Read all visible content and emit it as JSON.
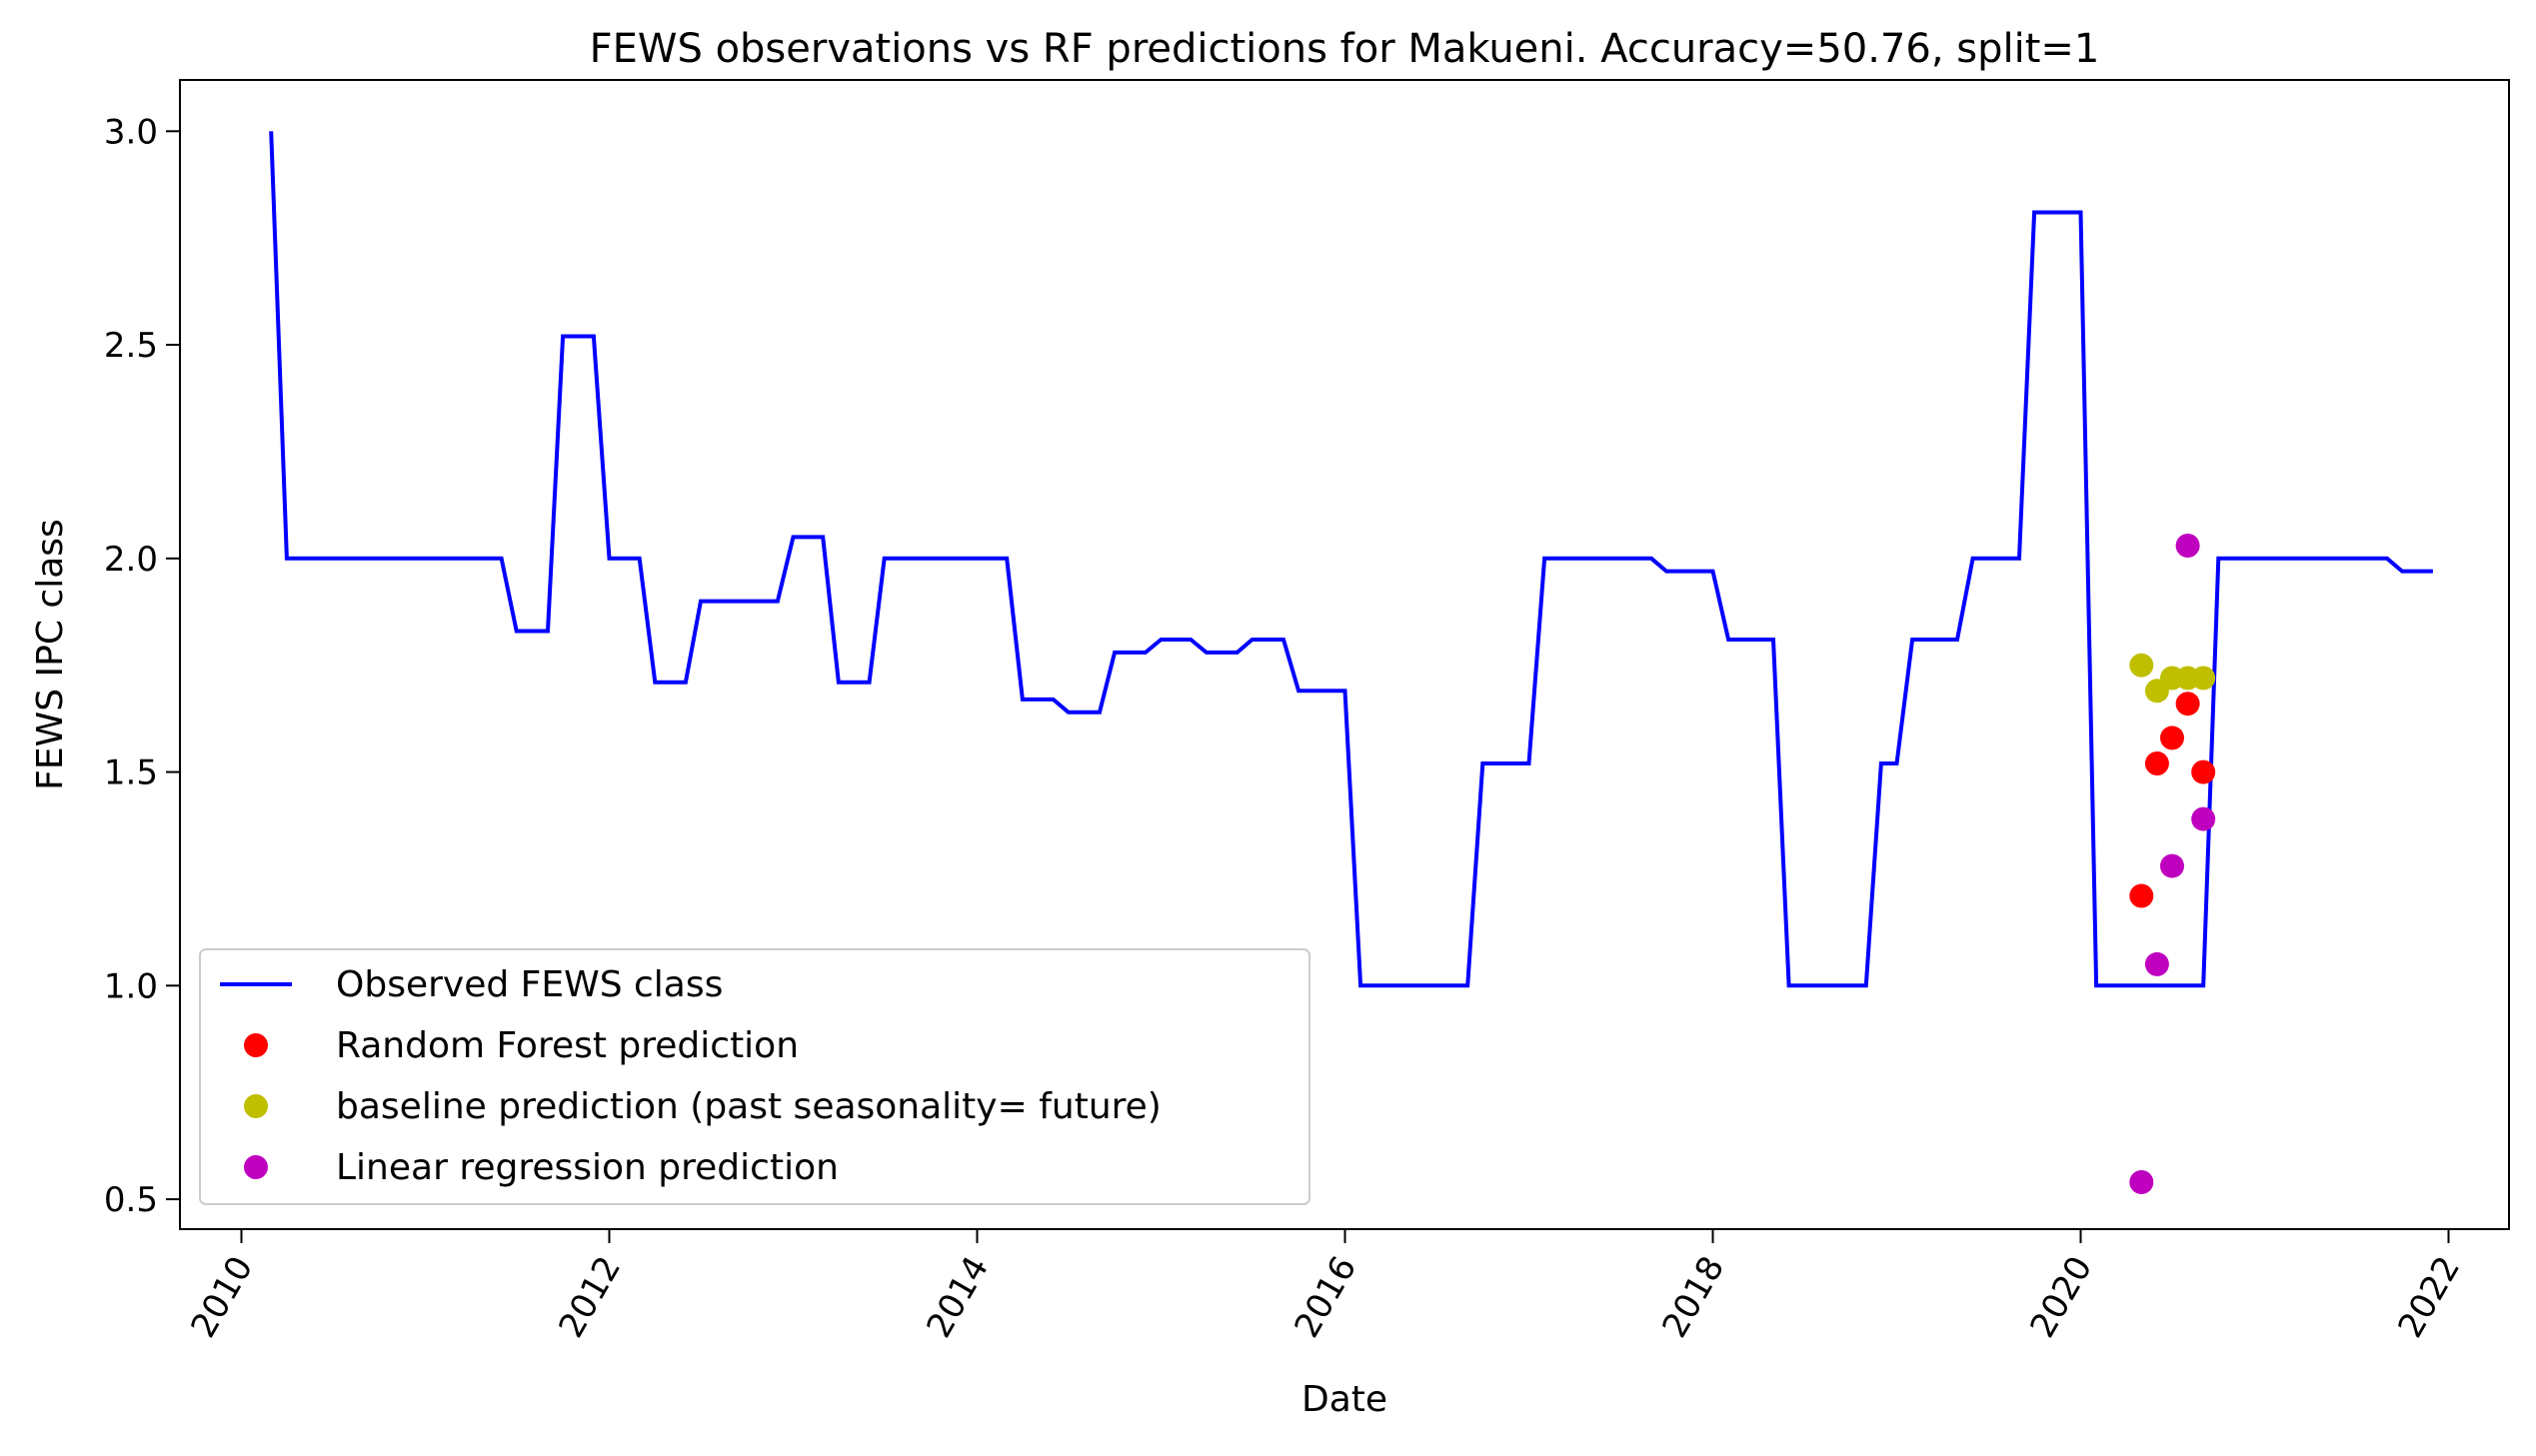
{
  "chart_data": {
    "type": "line",
    "title": "FEWS observations vs RF predictions for Makueni. Accuracy=50.76, split=1",
    "xlabel": "Date",
    "ylabel": "FEWS IPC class",
    "x_axis_type": "date",
    "xlim": [
      "2009-09-01",
      "2022-05-01"
    ],
    "ylim": [
      0.43,
      3.12
    ],
    "x_ticks": [
      {
        "date": "2010-01-01",
        "label": "2010"
      },
      {
        "date": "2012-01-01",
        "label": "2012"
      },
      {
        "date": "2014-01-01",
        "label": "2014"
      },
      {
        "date": "2016-01-01",
        "label": "2016"
      },
      {
        "date": "2018-01-01",
        "label": "2018"
      },
      {
        "date": "2020-01-01",
        "label": "2020"
      },
      {
        "date": "2022-01-01",
        "label": "2022"
      }
    ],
    "y_ticks": [
      {
        "value": 0.5,
        "label": "0.5"
      },
      {
        "value": 1.0,
        "label": "1.0"
      },
      {
        "value": 1.5,
        "label": "1.5"
      },
      {
        "value": 2.0,
        "label": "2.0"
      },
      {
        "value": 2.5,
        "label": "2.5"
      },
      {
        "value": 3.0,
        "label": "3.0"
      }
    ],
    "grid": false,
    "legend_position": "lower-left",
    "series": [
      {
        "name": "Observed FEWS class",
        "kind": "line",
        "color": "#0000ff",
        "x": [
          "2010-03-01",
          "2010-04-01",
          "2011-06-01",
          "2011-07-01",
          "2011-09-01",
          "2011-10-01",
          "2011-12-01",
          "2012-01-01",
          "2012-03-01",
          "2012-04-01",
          "2012-06-01",
          "2012-07-01",
          "2012-12-01",
          "2013-01-01",
          "2013-03-01",
          "2013-04-01",
          "2013-06-01",
          "2013-07-01",
          "2014-03-01",
          "2014-04-01",
          "2014-06-01",
          "2014-07-01",
          "2014-09-01",
          "2014-10-01",
          "2014-12-01",
          "2015-01-01",
          "2015-03-01",
          "2015-04-01",
          "2015-06-01",
          "2015-07-01",
          "2015-09-01",
          "2015-10-01",
          "2016-01-01",
          "2016-02-01",
          "2016-09-01",
          "2016-10-01",
          "2017-01-01",
          "2017-02-01",
          "2017-09-01",
          "2017-10-01",
          "2018-01-01",
          "2018-02-01",
          "2018-05-01",
          "2018-06-01",
          "2018-11-01",
          "2018-12-01",
          "2019-01-01",
          "2019-02-01",
          "2019-05-01",
          "2019-06-01",
          "2019-09-01",
          "2019-10-01",
          "2020-01-01",
          "2020-02-01",
          "2020-09-01",
          "2020-10-01",
          "2021-09-01",
          "2021-10-01",
          "2021-12-01"
        ],
        "y": [
          3.0,
          2.0,
          2.0,
          1.83,
          1.83,
          2.52,
          2.52,
          2.0,
          2.0,
          1.71,
          1.71,
          1.9,
          1.9,
          2.05,
          2.05,
          1.71,
          1.71,
          2.0,
          2.0,
          1.67,
          1.67,
          1.64,
          1.64,
          1.78,
          1.78,
          1.81,
          1.81,
          1.78,
          1.78,
          1.81,
          1.81,
          1.69,
          1.69,
          1.0,
          1.0,
          1.52,
          1.52,
          2.0,
          2.0,
          1.97,
          1.97,
          1.81,
          1.81,
          1.0,
          1.0,
          1.52,
          1.52,
          1.81,
          1.81,
          2.0,
          2.0,
          2.81,
          2.81,
          1.0,
          1.0,
          2.0,
          2.0,
          1.97,
          1.97
        ]
      },
      {
        "name": "Random Forest prediction",
        "kind": "points",
        "color": "#ff0000",
        "x": [
          "2020-05-01",
          "2020-06-01",
          "2020-07-01",
          "2020-08-01",
          "2020-09-01"
        ],
        "y": [
          1.21,
          1.52,
          1.58,
          1.66,
          1.5
        ]
      },
      {
        "name": "baseline prediction (past seasonality= future)",
        "kind": "points",
        "color": "#bfbf00",
        "x": [
          "2020-05-01",
          "2020-06-01",
          "2020-07-01",
          "2020-08-01",
          "2020-09-01"
        ],
        "y": [
          1.75,
          1.69,
          1.72,
          1.72,
          1.72
        ]
      },
      {
        "name": "Linear regression prediction",
        "kind": "points",
        "color": "#bf00bf",
        "x": [
          "2020-05-01",
          "2020-06-01",
          "2020-07-01",
          "2020-08-01",
          "2020-09-01"
        ],
        "y": [
          0.54,
          1.05,
          1.28,
          2.03,
          1.39
        ]
      }
    ]
  }
}
